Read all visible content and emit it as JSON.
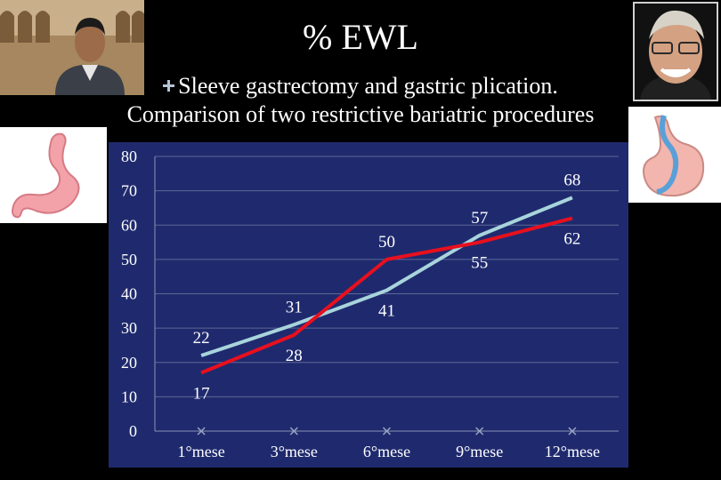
{
  "slide": {
    "title": "% EWL",
    "subtitle_line1": "Sleeve gastrectomy and gastric plication.",
    "subtitle_line2": "Comparison of two restrictive bariatric procedures"
  },
  "chart_data": {
    "type": "line",
    "categories": [
      "1°mese",
      "3°mese",
      "6°mese",
      "9°mese",
      "12°mese"
    ],
    "ylim": [
      0,
      80
    ],
    "yticks": [
      0,
      10,
      20,
      30,
      40,
      50,
      60,
      70,
      80
    ],
    "grid": true,
    "series": [
      {
        "color": "#a8d4dc",
        "values": [
          22,
          31,
          41,
          57,
          68
        ]
      },
      {
        "color": "#e8101e",
        "values": [
          17,
          28,
          50,
          55,
          62
        ]
      }
    ],
    "value_labels": [
      {
        "series": 0,
        "positions": [
          "above",
          "above",
          "below",
          "above",
          "above"
        ]
      },
      {
        "series": 1,
        "positions": [
          "below",
          "below",
          "above",
          "below",
          "below"
        ]
      }
    ]
  }
}
